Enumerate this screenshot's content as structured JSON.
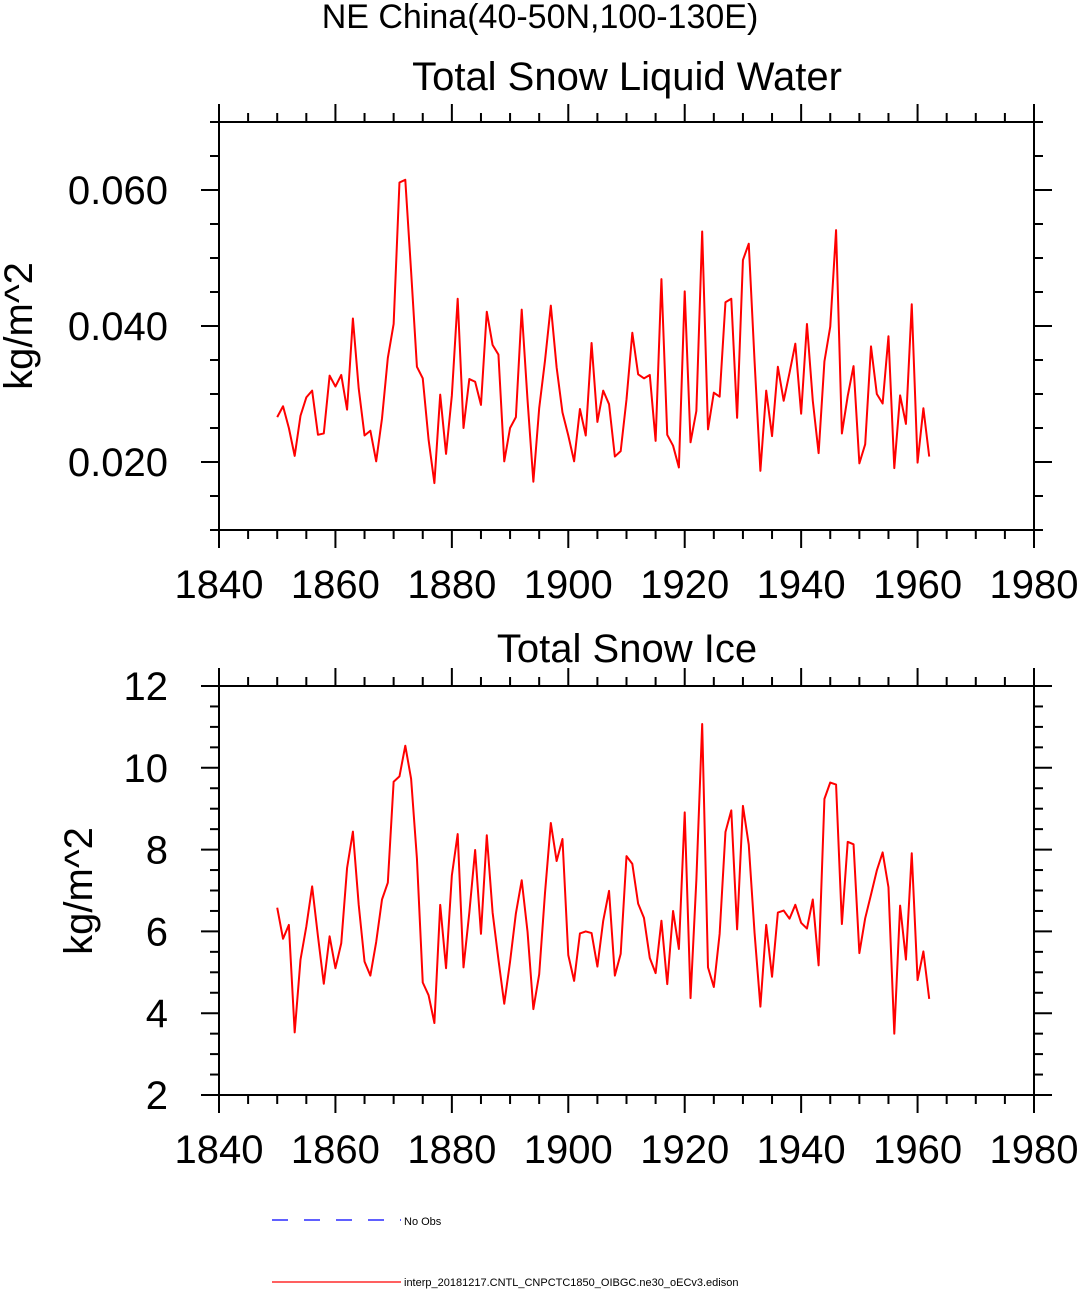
{
  "figure": {
    "suptitle": "NE China(40-50N,100-130E)"
  },
  "colors": {
    "model_line": "#ff0000",
    "obs_line": "#0000ff",
    "axes": "#000000"
  },
  "chart_data": [
    {
      "type": "line",
      "title": "Total Snow Liquid Water",
      "xlabel": "",
      "ylabel": "kg/m^2",
      "xlim": [
        1840,
        1980
      ],
      "ylim": [
        0.01,
        0.07
      ],
      "xticks": [
        1840,
        1860,
        1880,
        1900,
        1920,
        1940,
        1960,
        1980
      ],
      "xtick_labels": [
        "1840",
        "1860",
        "1880",
        "1900",
        "1920",
        "1940",
        "1960",
        "1980"
      ],
      "yticks": [
        0.02,
        0.04,
        0.06
      ],
      "ytick_labels": [
        "0.020",
        "0.040",
        "0.060"
      ],
      "y_minor_step": 0.005,
      "x_minor_step": 5,
      "grid": false,
      "x_start": 1850,
      "series": [
        {
          "name": "interp_20181217.CNTL_CNPCTC1850_OIBGC.ne30_oECv3.edison",
          "values": [
            0.0266,
            0.0282,
            0.025,
            0.0209,
            0.0268,
            0.0295,
            0.0305,
            0.024,
            0.0242,
            0.0327,
            0.0311,
            0.0328,
            0.0277,
            0.0411,
            0.0308,
            0.0239,
            0.0246,
            0.0201,
            0.0264,
            0.0353,
            0.0403,
            0.0611,
            0.0615,
            0.048,
            0.034,
            0.0323,
            0.0233,
            0.0169,
            0.0299,
            0.0212,
            0.0298,
            0.044,
            0.025,
            0.0322,
            0.0318,
            0.0284,
            0.0421,
            0.0372,
            0.0358,
            0.0201,
            0.025,
            0.0266,
            0.0424,
            0.0291,
            0.0171,
            0.0279,
            0.0349,
            0.043,
            0.0339,
            0.0273,
            0.0239,
            0.0201,
            0.0278,
            0.0239,
            0.0375,
            0.0259,
            0.0305,
            0.0285,
            0.0208,
            0.0216,
            0.0292,
            0.039,
            0.0329,
            0.0323,
            0.0328,
            0.0231,
            0.0469,
            0.024,
            0.0224,
            0.0192,
            0.0451,
            0.0229,
            0.0275,
            0.0539,
            0.0248,
            0.0302,
            0.0296,
            0.0435,
            0.044,
            0.0265,
            0.0497,
            0.0521,
            0.0348,
            0.0187,
            0.0305,
            0.0238,
            0.034,
            0.029,
            0.0331,
            0.0374,
            0.0271,
            0.0403,
            0.029,
            0.0213,
            0.0348,
            0.0399,
            0.0541,
            0.0242,
            0.0297,
            0.0341,
            0.0198,
            0.0226,
            0.037,
            0.03,
            0.0286,
            0.0385,
            0.0191,
            0.0298,
            0.0256,
            0.0432,
            0.0199,
            0.0279,
            0.0208
          ]
        }
      ]
    },
    {
      "type": "line",
      "title": "Total Snow Ice",
      "xlabel": "",
      "ylabel": "kg/m^2",
      "xlim": [
        1840,
        1980
      ],
      "ylim": [
        2,
        12
      ],
      "xticks": [
        1840,
        1860,
        1880,
        1900,
        1920,
        1940,
        1960,
        1980
      ],
      "xtick_labels": [
        "1840",
        "1860",
        "1880",
        "1900",
        "1920",
        "1940",
        "1960",
        "1980"
      ],
      "yticks": [
        2,
        4,
        6,
        8,
        10,
        12
      ],
      "ytick_labels": [
        "2",
        "4",
        "6",
        "8",
        "10",
        "12"
      ],
      "y_minor_step": 0.5,
      "x_minor_step": 5,
      "grid": false,
      "x_start": 1850,
      "series": [
        {
          "name": "interp_20181217.CNTL_CNPCTC1850_OIBGC.ne30_oECv3.edison",
          "values": [
            6.58,
            5.82,
            6.16,
            3.53,
            5.31,
            6.12,
            7.1,
            5.88,
            4.72,
            5.88,
            5.1,
            5.71,
            7.55,
            8.44,
            6.65,
            5.26,
            4.92,
            5.74,
            6.78,
            7.19,
            9.66,
            9.79,
            10.54,
            9.73,
            7.78,
            4.75,
            4.44,
            3.76,
            6.65,
            5.1,
            7.37,
            8.38,
            5.12,
            6.46,
            7.99,
            5.94,
            8.35,
            6.46,
            5.31,
            4.23,
            5.26,
            6.44,
            7.25,
            5.99,
            4.1,
            4.95,
            6.94,
            8.65,
            7.72,
            8.26,
            5.42,
            4.79,
            5.95,
            6.0,
            5.96,
            5.14,
            6.26,
            6.99,
            4.92,
            5.45,
            7.84,
            7.65,
            6.68,
            6.33,
            5.35,
            4.98,
            6.26,
            4.71,
            6.5,
            5.57,
            8.91,
            4.37,
            7.26,
            11.07,
            5.12,
            4.64,
            5.94,
            8.43,
            8.96,
            6.05,
            9.07,
            8.12,
            5.96,
            4.16,
            6.16,
            4.89,
            6.46,
            6.51,
            6.31,
            6.65,
            6.21,
            6.07,
            6.78,
            5.17,
            9.24,
            9.64,
            9.59,
            6.18,
            8.19,
            8.13,
            5.47,
            6.32,
            6.9,
            7.49,
            7.93,
            7.08,
            3.5,
            6.63,
            5.31,
            7.91,
            4.81,
            5.51,
            4.35
          ]
        }
      ]
    }
  ],
  "legend": {
    "placement": "bottom",
    "entries": [
      {
        "label": "No Obs",
        "style": "dashed",
        "color": "#0000ff"
      },
      {
        "label": "interp_20181217.CNTL_CNPCTC1850_OIBGC.ne30_oECv3.edison",
        "style": "solid",
        "color": "#ff0000"
      }
    ]
  }
}
